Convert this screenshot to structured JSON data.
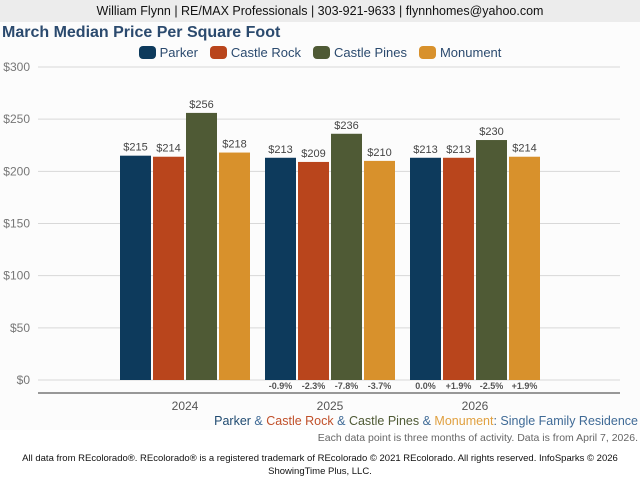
{
  "header": {
    "contact": "William Flynn | RE/MAX Professionals | 303-921-9633 | flynnhomes@yahoo.com"
  },
  "chart_data": {
    "type": "bar",
    "title": "March Median Price Per Square Foot",
    "xlabel": "",
    "ylabel": "",
    "ylim": [
      0,
      300
    ],
    "yticks": [
      0,
      50,
      100,
      150,
      200,
      250,
      300
    ],
    "ytick_labels": [
      "$0",
      "$50",
      "$100",
      "$150",
      "$200",
      "$250",
      "$300"
    ],
    "grid": true,
    "legend_position": "top-center",
    "categories": [
      "2024",
      "2025",
      "2026"
    ],
    "series": [
      {
        "name": "Parker",
        "color": "#0d3a5c",
        "values": [
          215,
          213,
          213
        ],
        "labels": [
          "$215",
          "$213",
          "$213"
        ],
        "changes": [
          null,
          "-0.9%",
          "0.0%"
        ]
      },
      {
        "name": "Castle Rock",
        "color": "#b9451c",
        "values": [
          214,
          209,
          213
        ],
        "labels": [
          "$214",
          "$209",
          "$213"
        ],
        "changes": [
          null,
          "-2.3%",
          "+1.9%"
        ]
      },
      {
        "name": "Castle Pines",
        "color": "#4f5a35",
        "values": [
          256,
          236,
          230
        ],
        "labels": [
          "$256",
          "$236",
          "$230"
        ],
        "changes": [
          null,
          "-7.8%",
          "-2.5%"
        ]
      },
      {
        "name": "Monument",
        "color": "#d8912c",
        "values": [
          218,
          210,
          214
        ],
        "labels": [
          "$218",
          "$210",
          "$214"
        ],
        "changes": [
          null,
          "-3.7%",
          "+1.9%"
        ]
      }
    ]
  },
  "footer": {
    "series_line": [
      {
        "text": "Parker",
        "color": "#1f4a70"
      },
      {
        "text": " & ",
        "color": "#3f6a96"
      },
      {
        "text": "Castle Rock",
        "color": "#c0502a"
      },
      {
        "text": " & ",
        "color": "#3f6a96"
      },
      {
        "text": "Castle Pines",
        "color": "#4f5a35"
      },
      {
        "text": " & ",
        "color": "#3f6a96"
      },
      {
        "text": "Monument",
        "color": "#e0a040"
      },
      {
        "text": ": Single Family Residence",
        "color": "#3f6a96"
      }
    ],
    "note": "Each data point is three months of activity. Data is from April 7, 2026.",
    "copyright_line1": "All data from REcolorado®. REcolorado® is a registered trademark of REcolorado © 2021 REcolorado. All rights reserved. InfoSparks © 2026",
    "copyright_line2": "ShowingTime Plus, LLC."
  }
}
